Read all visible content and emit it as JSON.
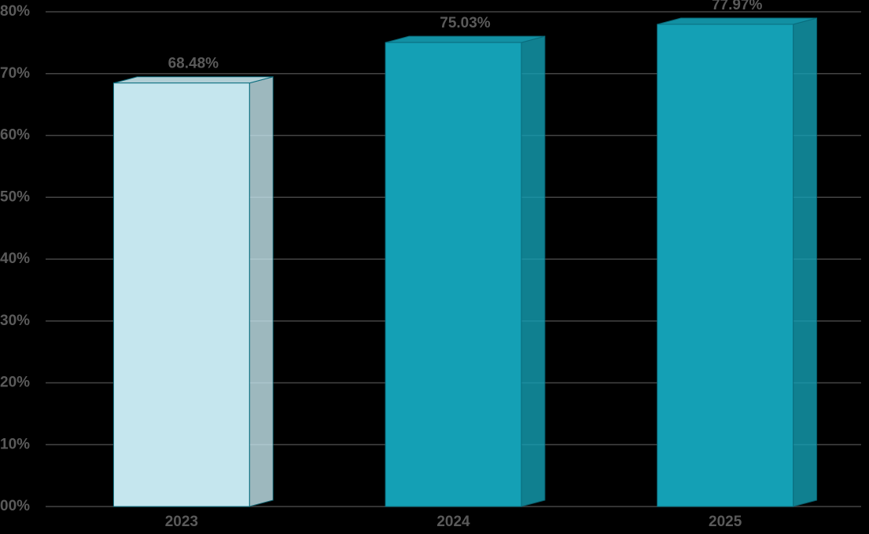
{
  "chart_data": {
    "type": "bar",
    "categories": [
      "2023",
      "2024",
      "2025"
    ],
    "values": [
      68.48,
      75.03,
      77.97
    ],
    "value_labels": [
      "68.48%",
      "75.03%",
      "77.97%"
    ],
    "colors": [
      "#c5e6ee",
      "#14a0b5",
      "#14a0b5"
    ],
    "ylim": [
      0,
      80
    ],
    "yticks": [
      {
        "value": 0,
        "label": "00%"
      },
      {
        "value": 10,
        "label": "10%"
      },
      {
        "value": 20,
        "label": "20%"
      },
      {
        "value": 30,
        "label": "30%"
      },
      {
        "value": 40,
        "label": "40%"
      },
      {
        "value": 50,
        "label": "50%"
      },
      {
        "value": 60,
        "label": "60%"
      },
      {
        "value": 70,
        "label": "70%"
      },
      {
        "value": 80,
        "label": "80%"
      }
    ],
    "grid": true
  }
}
